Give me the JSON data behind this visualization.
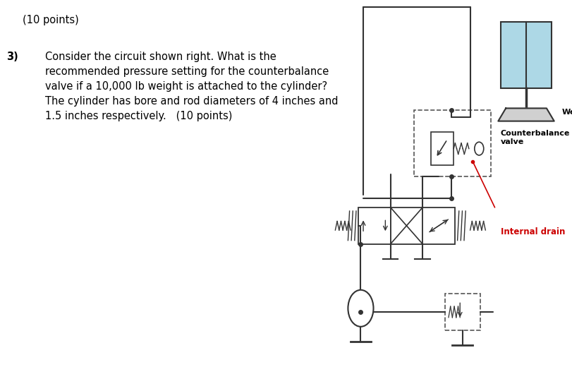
{
  "background_color": "#ffffff",
  "left_panel_bg": "#ffffff",
  "right_panel_bg": "#e8e8e8",
  "text_line1": "(10 points)",
  "text_number": "3)",
  "text_body": "Consider the circuit shown right. What is the\nrecommended pressure setting for the counterbalance\nvalve if a 10,000 lb weight is attached to the cylinder?\nThe cylinder has bore and rod diameters of 4 inches and\n1.5 inches respectively.   (10 points)",
  "label_weight": "Weight",
  "label_counterbalance": "Counterbalance\nvalve",
  "label_internal_drain": "Internal drain",
  "cylinder_fill_color": "#add8e6",
  "cylinder_outline": "#555555",
  "line_color": "#333333",
  "dashed_color": "#555555",
  "red_color": "#cc0000",
  "weight_fill": "#d0d0d0",
  "label_fontsize": 8,
  "body_fontsize": 10.5
}
